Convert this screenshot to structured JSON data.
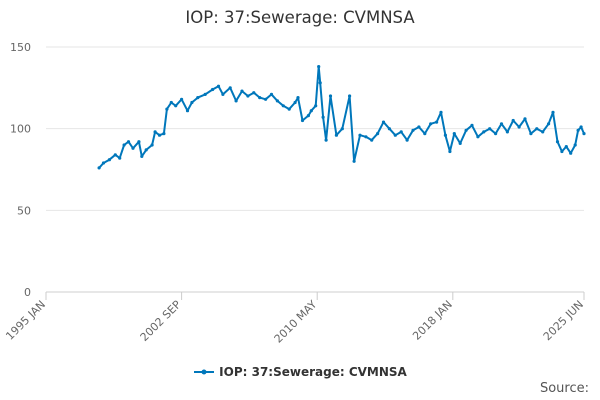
{
  "chart_data": {
    "type": "line",
    "title": "IOP: 37:Sewerage: CVMNSA",
    "xlabel": "",
    "ylabel": "",
    "ylim": [
      0,
      150
    ],
    "yticks": [
      0,
      50,
      100,
      150
    ],
    "xlim": [
      "1995-01",
      "2025-06"
    ],
    "xticks": [
      {
        "label": "1995 JAN",
        "date": "1995-01"
      },
      {
        "label": "2002 SEP",
        "date": "2002-09"
      },
      {
        "label": "2010 MAY",
        "date": "2010-05"
      },
      {
        "label": "2018 JAN",
        "date": "2018-01"
      },
      {
        "label": "2025 JUN",
        "date": "2025-06"
      }
    ],
    "grid": true,
    "legend": "bottom",
    "series": [
      {
        "name": "IOP: 37:Sewerage: CVMNSA",
        "color": "#0077bb",
        "points": [
          [
            "1998-01",
            76
          ],
          [
            "1998-04",
            79
          ],
          [
            "1998-08",
            81
          ],
          [
            "1998-12",
            84
          ],
          [
            "1999-03",
            82
          ],
          [
            "1999-06",
            90
          ],
          [
            "1999-09",
            92
          ],
          [
            "1999-12",
            88
          ],
          [
            "2000-04",
            92
          ],
          [
            "2000-06",
            83
          ],
          [
            "2000-09",
            87
          ],
          [
            "2001-01",
            90
          ],
          [
            "2001-03",
            98
          ],
          [
            "2001-06",
            96
          ],
          [
            "2001-09",
            97
          ],
          [
            "2001-11",
            112
          ],
          [
            "2002-02",
            116
          ],
          [
            "2002-05",
            114
          ],
          [
            "2002-09",
            118
          ],
          [
            "2003-01",
            111
          ],
          [
            "2003-04",
            116
          ],
          [
            "2003-08",
            119
          ],
          [
            "2004-01",
            121
          ],
          [
            "2004-06",
            124
          ],
          [
            "2004-10",
            126
          ],
          [
            "2005-01",
            121
          ],
          [
            "2005-06",
            125
          ],
          [
            "2005-10",
            117
          ],
          [
            "2006-02",
            123
          ],
          [
            "2006-06",
            120
          ],
          [
            "2006-10",
            122
          ],
          [
            "2007-02",
            119
          ],
          [
            "2007-06",
            118
          ],
          [
            "2007-10",
            121
          ],
          [
            "2008-02",
            117
          ],
          [
            "2008-06",
            114
          ],
          [
            "2008-10",
            112
          ],
          [
            "2009-02",
            116
          ],
          [
            "2009-04",
            119
          ],
          [
            "2009-07",
            105
          ],
          [
            "2009-11",
            108
          ],
          [
            "2010-01",
            111
          ],
          [
            "2010-04",
            114
          ],
          [
            "2010-06",
            138
          ],
          [
            "2010-07",
            128
          ],
          [
            "2010-09",
            107
          ],
          [
            "2010-11",
            93
          ],
          [
            "2011-02",
            120
          ],
          [
            "2011-06",
            96
          ],
          [
            "2011-10",
            100
          ],
          [
            "2012-03",
            120
          ],
          [
            "2012-06",
            80
          ],
          [
            "2012-10",
            96
          ],
          [
            "2013-02",
            95
          ],
          [
            "2013-06",
            93
          ],
          [
            "2013-10",
            97
          ],
          [
            "2014-02",
            104
          ],
          [
            "2014-06",
            100
          ],
          [
            "2014-10",
            96
          ],
          [
            "2015-02",
            98
          ],
          [
            "2015-06",
            93
          ],
          [
            "2015-10",
            99
          ],
          [
            "2016-02",
            101
          ],
          [
            "2016-06",
            97
          ],
          [
            "2016-10",
            103
          ],
          [
            "2017-02",
            104
          ],
          [
            "2017-05",
            110
          ],
          [
            "2017-08",
            96
          ],
          [
            "2017-11",
            86
          ],
          [
            "2018-02",
            97
          ],
          [
            "2018-06",
            91
          ],
          [
            "2018-10",
            99
          ],
          [
            "2019-02",
            102
          ],
          [
            "2019-06",
            95
          ],
          [
            "2019-10",
            98
          ],
          [
            "2020-02",
            100
          ],
          [
            "2020-06",
            97
          ],
          [
            "2020-10",
            103
          ],
          [
            "2021-02",
            98
          ],
          [
            "2021-06",
            105
          ],
          [
            "2021-10",
            101
          ],
          [
            "2022-02",
            106
          ],
          [
            "2022-06",
            97
          ],
          [
            "2022-10",
            100
          ],
          [
            "2023-02",
            98
          ],
          [
            "2023-06",
            103
          ],
          [
            "2023-09",
            110
          ],
          [
            "2023-12",
            92
          ],
          [
            "2024-03",
            86
          ],
          [
            "2024-06",
            89
          ],
          [
            "2024-09",
            85
          ],
          [
            "2024-12",
            90
          ],
          [
            "2025-02",
            99
          ],
          [
            "2025-04",
            101
          ],
          [
            "2025-06",
            97
          ]
        ]
      }
    ],
    "source_label": "Source:"
  }
}
